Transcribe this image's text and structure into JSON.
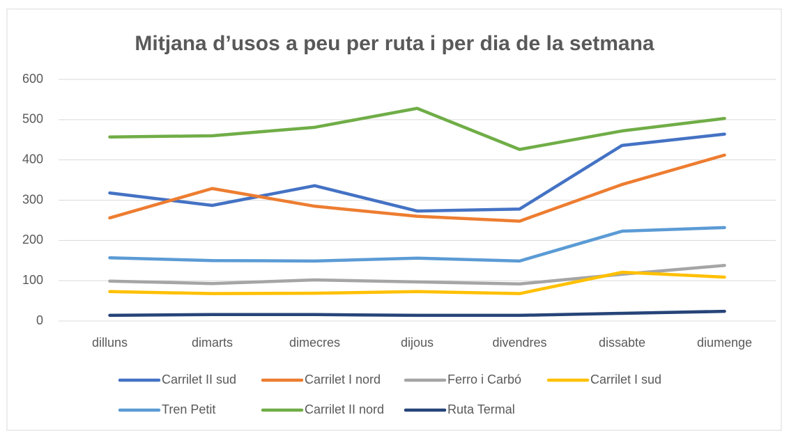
{
  "chart_data": {
    "type": "line",
    "title": "Mitjana d’usos a peu per ruta i per dia de la setmana",
    "categories": [
      "dilluns",
      "dimarts",
      "dimecres",
      "dijous",
      "divendres",
      "dissabte",
      "diumenge"
    ],
    "series": [
      {
        "name": "Carrilet II sud",
        "color": "#4472c4",
        "values": [
          318,
          287,
          336,
          273,
          278,
          436,
          464
        ]
      },
      {
        "name": "Carrilet I nord",
        "color": "#ed7d31",
        "values": [
          256,
          329,
          285,
          260,
          248,
          339,
          412
        ]
      },
      {
        "name": "Ferro i Carbó",
        "color": "#a5a5a5",
        "values": [
          99,
          93,
          102,
          97,
          92,
          116,
          138
        ]
      },
      {
        "name": "Carrilet I sud",
        "color": "#ffc000",
        "values": [
          73,
          68,
          69,
          73,
          68,
          121,
          109
        ]
      },
      {
        "name": "Tren Petit",
        "color": "#5b9bd5",
        "values": [
          157,
          150,
          149,
          156,
          149,
          223,
          232
        ]
      },
      {
        "name": "Carrilet II nord",
        "color": "#70ad47",
        "values": [
          457,
          460,
          481,
          528,
          426,
          472,
          503
        ]
      },
      {
        "name": "Ruta Termal",
        "color": "#264478",
        "values": [
          14,
          16,
          16,
          14,
          14,
          19,
          24
        ]
      }
    ],
    "ylim": [
      0,
      600
    ],
    "yticks": [
      0,
      100,
      200,
      300,
      400,
      500,
      600
    ],
    "grid": true,
    "legend": "bottom"
  }
}
